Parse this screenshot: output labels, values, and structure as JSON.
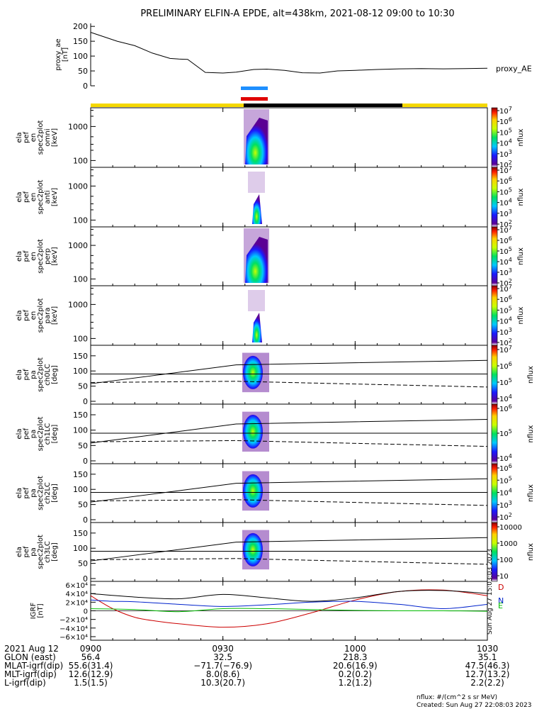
{
  "title": "PRELIMINARY ELFIN-A EPDE, alt=438km, 2021-08-12 09:00 to 10:30",
  "colors": {
    "science_bar": "#f5d800",
    "black_bar": "#000000",
    "blue_marker": "#1e8fff",
    "red_marker": "#e00000",
    "grf_D": "#cc0000",
    "grf_N": "#0022cc",
    "grf_E": "#00bb00"
  },
  "chart_data": [
    {
      "type": "line",
      "panel": "proxy_ae",
      "ylabel": [
        "proxy_ae",
        "[nT]"
      ],
      "series_label": "proxy_AE",
      "ylim": [
        0,
        210
      ],
      "yticks": [
        "0",
        "50",
        "100",
        "150",
        "200"
      ],
      "x_minutes": [
        0,
        3,
        6,
        10,
        14,
        18,
        20,
        22,
        26,
        30,
        33,
        37,
        40,
        44,
        48,
        52,
        56,
        60,
        65,
        70,
        75,
        80,
        85,
        90
      ],
      "y": [
        180,
        165,
        150,
        135,
        110,
        92,
        90,
        89,
        45,
        43,
        46,
        55,
        56,
        52,
        44,
        43,
        50,
        52,
        55,
        57,
        58,
        57,
        58,
        59
      ]
    },
    {
      "type": "heatmap",
      "panel": "spec-omni",
      "ylabel": [
        "ela",
        "pef",
        "en",
        "spec2plot",
        "omni",
        "[keV]"
      ],
      "yticks": [
        "100",
        "1000"
      ],
      "colorbar_ticks": [
        "10^2",
        "10^3",
        "10^4",
        "10^5",
        "10^6",
        "10^7"
      ],
      "colorbar_label": "nflux"
    },
    {
      "type": "heatmap",
      "panel": "spec-anti",
      "ylabel": [
        "ela",
        "pef",
        "en",
        "spec2plot",
        "anti",
        "[keV]"
      ],
      "yticks": [
        "100",
        "1000"
      ],
      "colorbar_ticks": [
        "10^2",
        "10^3",
        "10^4",
        "10^5",
        "10^6",
        "10^7"
      ],
      "colorbar_label": "nflux"
    },
    {
      "type": "heatmap",
      "panel": "spec-perp",
      "ylabel": [
        "ela",
        "pef",
        "en",
        "spec2plot",
        "perp",
        "[keV]"
      ],
      "yticks": [
        "100",
        "1000"
      ],
      "colorbar_ticks": [
        "10^2",
        "10^3",
        "10^4",
        "10^5",
        "10^6",
        "10^7"
      ],
      "colorbar_label": "nflux"
    },
    {
      "type": "heatmap",
      "panel": "spec-para",
      "ylabel": [
        "ela",
        "pef",
        "en",
        "spec2plot",
        "para",
        "[keV]"
      ],
      "yticks": [
        "100",
        "1000"
      ],
      "colorbar_ticks": [
        "10^2",
        "10^3",
        "10^4",
        "10^5",
        "10^6",
        "10^7"
      ],
      "colorbar_label": "nflux"
    },
    {
      "type": "heatmap",
      "panel": "pa-ch0",
      "ylabel": [
        "ela",
        "pef",
        "pa",
        "spec2plot",
        "ch0LC",
        "[deg]"
      ],
      "yticks": [
        "0",
        "50",
        "100",
        "150"
      ],
      "ylim": [
        0,
        180
      ],
      "colorbar_ticks": [
        "10^4",
        "10^5",
        "10^6",
        "10^7"
      ],
      "colorbar_label": "nflux"
    },
    {
      "type": "heatmap",
      "panel": "pa-ch1",
      "ylabel": [
        "ela",
        "pef",
        "pa",
        "spec2plot",
        "ch1LC",
        "[deg]"
      ],
      "yticks": [
        "0",
        "50",
        "100",
        "150"
      ],
      "ylim": [
        0,
        180
      ],
      "colorbar_ticks": [
        "10^4",
        "10^5",
        "10^6"
      ],
      "colorbar_label": "nflux"
    },
    {
      "type": "heatmap",
      "panel": "pa-ch2",
      "ylabel": [
        "ela",
        "pef",
        "pa",
        "spec2plot",
        "ch2LC",
        "[deg]"
      ],
      "yticks": [
        "0",
        "50",
        "100",
        "150"
      ],
      "ylim": [
        0,
        180
      ],
      "colorbar_ticks": [
        "10^2",
        "10^3",
        "10^4",
        "10^5",
        "10^6"
      ],
      "colorbar_label": "nflux"
    },
    {
      "type": "heatmap",
      "panel": "pa-ch3",
      "ylabel": [
        "ela",
        "pef",
        "pa",
        "spec2plot",
        "ch3LC",
        "[deg]"
      ],
      "yticks": [
        "0",
        "50",
        "100",
        "150"
      ],
      "ylim": [
        0,
        180
      ],
      "colorbar_ticks": [
        "10",
        "100",
        "1000",
        "10000"
      ],
      "colorbar_label": "nflux"
    },
    {
      "type": "line",
      "panel": "igrf",
      "ylabel": [
        "IGRF",
        "[nT]"
      ],
      "ylim": [
        -65000,
        65000
      ],
      "yticks": [
        "6×10⁴",
        "4×10⁴",
        "2×10⁴",
        "0",
        "−2×10⁴",
        "−4×10⁴",
        "−6×10⁴"
      ],
      "series": [
        {
          "name": "D",
          "x_minutes": [
            0,
            5,
            10,
            15,
            20,
            30,
            40,
            50,
            60,
            70,
            80,
            90
          ],
          "y": [
            35000,
            5000,
            -15000,
            -24000,
            -30000,
            -38000,
            -30000,
            -5000,
            25000,
            45000,
            48000,
            35000
          ]
        },
        {
          "name": "N",
          "x_minutes": [
            0,
            5,
            10,
            20,
            30,
            40,
            50,
            60,
            70,
            80,
            90
          ],
          "y": [
            25000,
            22000,
            21000,
            15000,
            10000,
            14000,
            20000,
            22000,
            15000,
            5000,
            15000
          ]
        },
        {
          "name": "E",
          "x_minutes": [
            0,
            10,
            20,
            30,
            40,
            50,
            60,
            70,
            80,
            90
          ],
          "y": [
            5000,
            3000,
            -2000,
            5000,
            5000,
            3000,
            1000,
            0,
            0,
            -1000
          ]
        },
        {
          "name": "",
          "x_minutes": [
            0,
            10,
            20,
            30,
            40,
            50,
            60,
            70,
            80,
            90
          ],
          "y": [
            40000,
            32000,
            28000,
            38000,
            30000,
            22000,
            30000,
            45000,
            47000,
            40000
          ]
        }
      ]
    }
  ],
  "side_stamp": "Sun Aug 27 15:03:03 2023",
  "footer_labels": [
    "2021 Aug 12",
    "GLON (east)",
    "MLAT-igrf(dip)",
    "MLT-igrf(dip)",
    "L-igrf(dip)"
  ],
  "footer_columns": [
    [
      "0900",
      "56.4",
      "55.6(31.4)",
      "12.6(12.9)",
      "1.5(1.5)"
    ],
    [
      "0930",
      "32.5",
      "−71.7(−76.9)",
      "8.0(8.6)",
      "10.3(20.7)"
    ],
    [
      "1000",
      "218.3",
      "20.6(16.9)",
      "0.2(0.2)",
      "1.2(1.2)"
    ],
    [
      "1030",
      "35.1",
      "47.5(46.3)",
      "12.7(13.2)",
      "2.2(2.2)"
    ]
  ],
  "footnote1": "nflux: #/(cm^2 s sr MeV)",
  "footnote2": "Created: Sun Aug 27 22:08:03 2023"
}
